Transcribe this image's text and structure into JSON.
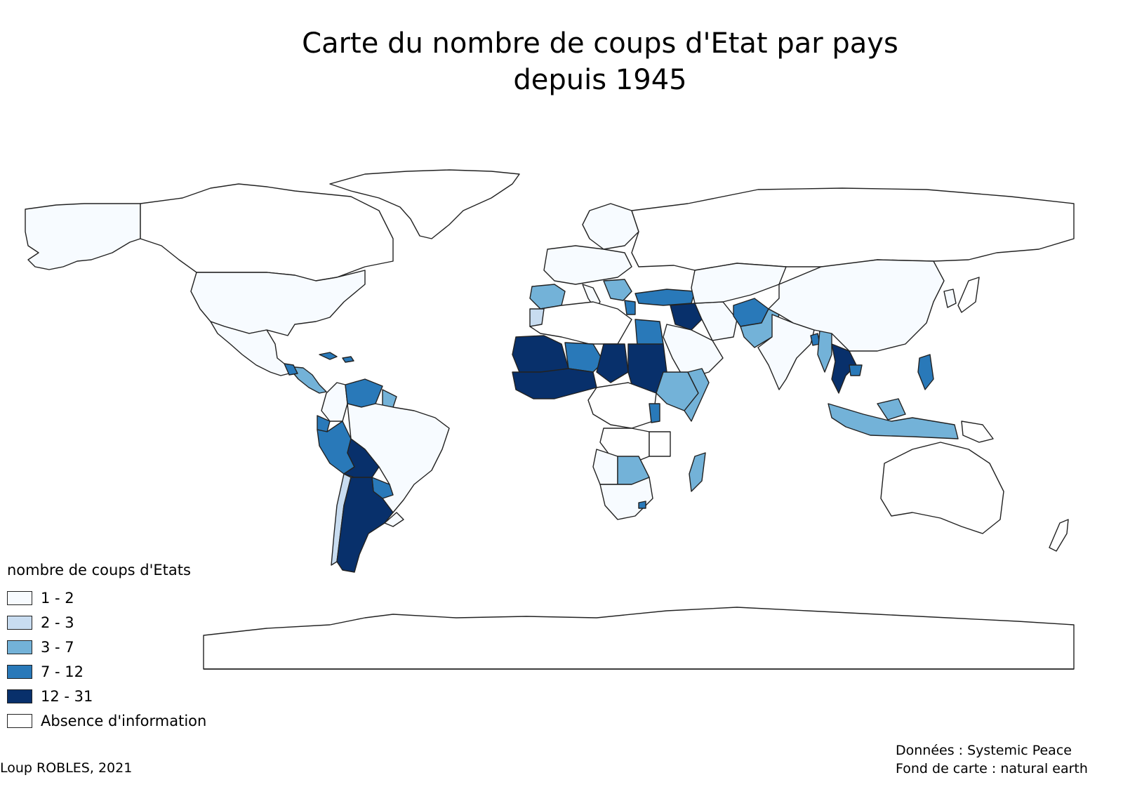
{
  "title": "Carte du nombre de coups d'Etat par pays depuis 1945",
  "legend": {
    "title": "nombre de coups d'Etats",
    "items": [
      {
        "label": "1 - 2",
        "color": "#f7fbff"
      },
      {
        "label": "2 - 3",
        "color": "#c8dcf0"
      },
      {
        "label": "3 - 7",
        "color": "#73b2d8"
      },
      {
        "label": "7 - 12",
        "color": "#2979b9"
      },
      {
        "label": "12 - 31",
        "color": "#08306b"
      },
      {
        "label": "Absence d'information",
        "color": "#ffffff"
      }
    ]
  },
  "credit": "Loup ROBLES, 2021",
  "sources": {
    "data": "Données : Systemic Peace",
    "basemap": "Fond de carte : natural earth"
  },
  "colors": {
    "c1": "#f7fbff",
    "c2": "#c8dcf0",
    "c3": "#73b2d8",
    "c4": "#2979b9",
    "c5": "#08306b",
    "none": "#ffffff",
    "border": "#222222"
  }
}
